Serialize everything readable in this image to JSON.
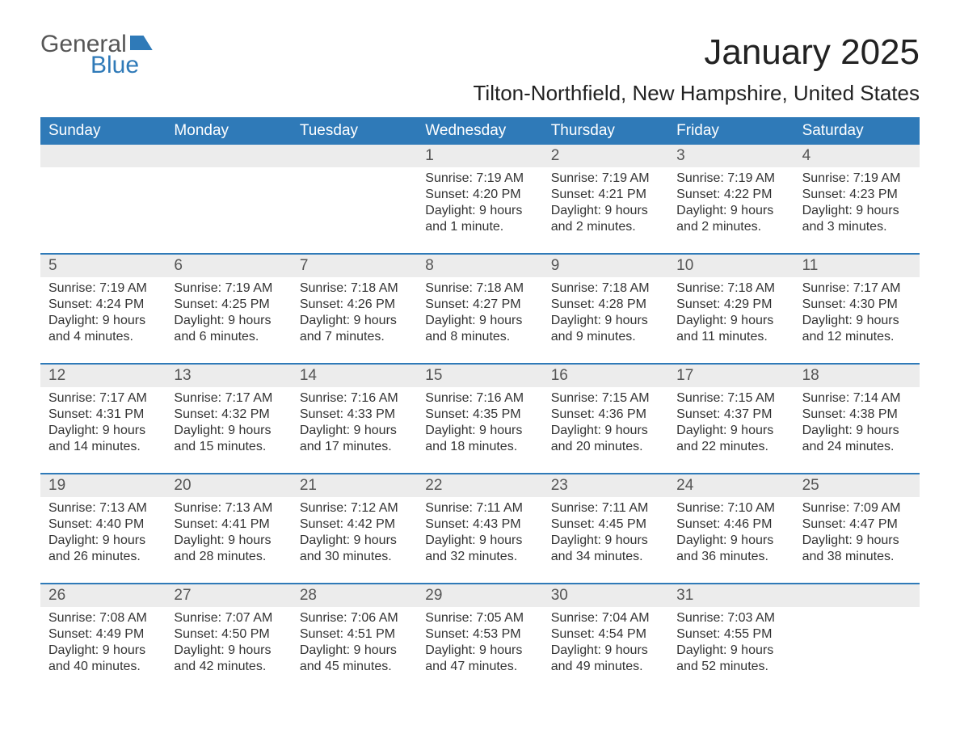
{
  "logo": {
    "word1": "General",
    "word2": "Blue"
  },
  "title": "January 2025",
  "subtitle": "Tilton-Northfield, New Hampshire, United States",
  "colors": {
    "brand_blue": "#2f7ab8",
    "header_text": "#ffffff",
    "daynum_bg": "#ececec",
    "body_text": "#333333",
    "logo_gray": "#565656",
    "page_bg": "#ffffff"
  },
  "typography": {
    "title_fontsize": 44,
    "subtitle_fontsize": 26,
    "dayname_fontsize": 19,
    "daynum_fontsize": 19,
    "cell_fontsize": 16
  },
  "day_names": [
    "Sunday",
    "Monday",
    "Tuesday",
    "Wednesday",
    "Thursday",
    "Friday",
    "Saturday"
  ],
  "weeks": [
    [
      null,
      null,
      null,
      {
        "n": "1",
        "sunrise": "Sunrise: 7:19 AM",
        "sunset": "Sunset: 4:20 PM",
        "dl1": "Daylight: 9 hours",
        "dl2": "and 1 minute."
      },
      {
        "n": "2",
        "sunrise": "Sunrise: 7:19 AM",
        "sunset": "Sunset: 4:21 PM",
        "dl1": "Daylight: 9 hours",
        "dl2": "and 2 minutes."
      },
      {
        "n": "3",
        "sunrise": "Sunrise: 7:19 AM",
        "sunset": "Sunset: 4:22 PM",
        "dl1": "Daylight: 9 hours",
        "dl2": "and 2 minutes."
      },
      {
        "n": "4",
        "sunrise": "Sunrise: 7:19 AM",
        "sunset": "Sunset: 4:23 PM",
        "dl1": "Daylight: 9 hours",
        "dl2": "and 3 minutes."
      }
    ],
    [
      {
        "n": "5",
        "sunrise": "Sunrise: 7:19 AM",
        "sunset": "Sunset: 4:24 PM",
        "dl1": "Daylight: 9 hours",
        "dl2": "and 4 minutes."
      },
      {
        "n": "6",
        "sunrise": "Sunrise: 7:19 AM",
        "sunset": "Sunset: 4:25 PM",
        "dl1": "Daylight: 9 hours",
        "dl2": "and 6 minutes."
      },
      {
        "n": "7",
        "sunrise": "Sunrise: 7:18 AM",
        "sunset": "Sunset: 4:26 PM",
        "dl1": "Daylight: 9 hours",
        "dl2": "and 7 minutes."
      },
      {
        "n": "8",
        "sunrise": "Sunrise: 7:18 AM",
        "sunset": "Sunset: 4:27 PM",
        "dl1": "Daylight: 9 hours",
        "dl2": "and 8 minutes."
      },
      {
        "n": "9",
        "sunrise": "Sunrise: 7:18 AM",
        "sunset": "Sunset: 4:28 PM",
        "dl1": "Daylight: 9 hours",
        "dl2": "and 9 minutes."
      },
      {
        "n": "10",
        "sunrise": "Sunrise: 7:18 AM",
        "sunset": "Sunset: 4:29 PM",
        "dl1": "Daylight: 9 hours",
        "dl2": "and 11 minutes."
      },
      {
        "n": "11",
        "sunrise": "Sunrise: 7:17 AM",
        "sunset": "Sunset: 4:30 PM",
        "dl1": "Daylight: 9 hours",
        "dl2": "and 12 minutes."
      }
    ],
    [
      {
        "n": "12",
        "sunrise": "Sunrise: 7:17 AM",
        "sunset": "Sunset: 4:31 PM",
        "dl1": "Daylight: 9 hours",
        "dl2": "and 14 minutes."
      },
      {
        "n": "13",
        "sunrise": "Sunrise: 7:17 AM",
        "sunset": "Sunset: 4:32 PM",
        "dl1": "Daylight: 9 hours",
        "dl2": "and 15 minutes."
      },
      {
        "n": "14",
        "sunrise": "Sunrise: 7:16 AM",
        "sunset": "Sunset: 4:33 PM",
        "dl1": "Daylight: 9 hours",
        "dl2": "and 17 minutes."
      },
      {
        "n": "15",
        "sunrise": "Sunrise: 7:16 AM",
        "sunset": "Sunset: 4:35 PM",
        "dl1": "Daylight: 9 hours",
        "dl2": "and 18 minutes."
      },
      {
        "n": "16",
        "sunrise": "Sunrise: 7:15 AM",
        "sunset": "Sunset: 4:36 PM",
        "dl1": "Daylight: 9 hours",
        "dl2": "and 20 minutes."
      },
      {
        "n": "17",
        "sunrise": "Sunrise: 7:15 AM",
        "sunset": "Sunset: 4:37 PM",
        "dl1": "Daylight: 9 hours",
        "dl2": "and 22 minutes."
      },
      {
        "n": "18",
        "sunrise": "Sunrise: 7:14 AM",
        "sunset": "Sunset: 4:38 PM",
        "dl1": "Daylight: 9 hours",
        "dl2": "and 24 minutes."
      }
    ],
    [
      {
        "n": "19",
        "sunrise": "Sunrise: 7:13 AM",
        "sunset": "Sunset: 4:40 PM",
        "dl1": "Daylight: 9 hours",
        "dl2": "and 26 minutes."
      },
      {
        "n": "20",
        "sunrise": "Sunrise: 7:13 AM",
        "sunset": "Sunset: 4:41 PM",
        "dl1": "Daylight: 9 hours",
        "dl2": "and 28 minutes."
      },
      {
        "n": "21",
        "sunrise": "Sunrise: 7:12 AM",
        "sunset": "Sunset: 4:42 PM",
        "dl1": "Daylight: 9 hours",
        "dl2": "and 30 minutes."
      },
      {
        "n": "22",
        "sunrise": "Sunrise: 7:11 AM",
        "sunset": "Sunset: 4:43 PM",
        "dl1": "Daylight: 9 hours",
        "dl2": "and 32 minutes."
      },
      {
        "n": "23",
        "sunrise": "Sunrise: 7:11 AM",
        "sunset": "Sunset: 4:45 PM",
        "dl1": "Daylight: 9 hours",
        "dl2": "and 34 minutes."
      },
      {
        "n": "24",
        "sunrise": "Sunrise: 7:10 AM",
        "sunset": "Sunset: 4:46 PM",
        "dl1": "Daylight: 9 hours",
        "dl2": "and 36 minutes."
      },
      {
        "n": "25",
        "sunrise": "Sunrise: 7:09 AM",
        "sunset": "Sunset: 4:47 PM",
        "dl1": "Daylight: 9 hours",
        "dl2": "and 38 minutes."
      }
    ],
    [
      {
        "n": "26",
        "sunrise": "Sunrise: 7:08 AM",
        "sunset": "Sunset: 4:49 PM",
        "dl1": "Daylight: 9 hours",
        "dl2": "and 40 minutes."
      },
      {
        "n": "27",
        "sunrise": "Sunrise: 7:07 AM",
        "sunset": "Sunset: 4:50 PM",
        "dl1": "Daylight: 9 hours",
        "dl2": "and 42 minutes."
      },
      {
        "n": "28",
        "sunrise": "Sunrise: 7:06 AM",
        "sunset": "Sunset: 4:51 PM",
        "dl1": "Daylight: 9 hours",
        "dl2": "and 45 minutes."
      },
      {
        "n": "29",
        "sunrise": "Sunrise: 7:05 AM",
        "sunset": "Sunset: 4:53 PM",
        "dl1": "Daylight: 9 hours",
        "dl2": "and 47 minutes."
      },
      {
        "n": "30",
        "sunrise": "Sunrise: 7:04 AM",
        "sunset": "Sunset: 4:54 PM",
        "dl1": "Daylight: 9 hours",
        "dl2": "and 49 minutes."
      },
      {
        "n": "31",
        "sunrise": "Sunrise: 7:03 AM",
        "sunset": "Sunset: 4:55 PM",
        "dl1": "Daylight: 9 hours",
        "dl2": "and 52 minutes."
      },
      null
    ]
  ]
}
